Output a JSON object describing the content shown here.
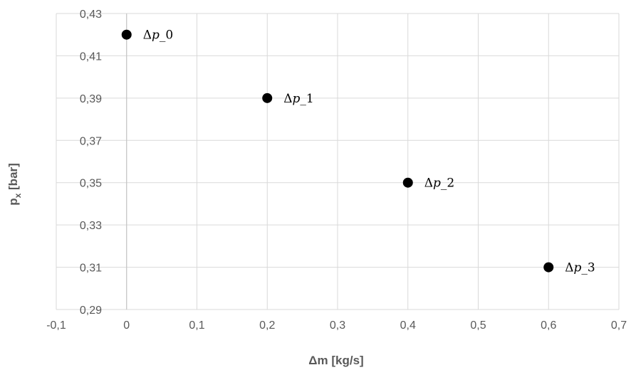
{
  "chart_data": {
    "type": "scatter",
    "title": "",
    "xlabel": "Δm [kg/s]",
    "ylabel_main": "p",
    "ylabel_sub": "x",
    "ylabel_suffix": " [bar]",
    "xlim": [
      -0.1,
      0.7
    ],
    "ylim": [
      0.29,
      0.43
    ],
    "x_ticks": [
      "-0,1",
      "0",
      "0,1",
      "0,2",
      "0,3",
      "0,4",
      "0,5",
      "0,6",
      "0,7"
    ],
    "y_ticks": [
      "0,29",
      "0,31",
      "0,33",
      "0,35",
      "0,37",
      "0,39",
      "0,41",
      "0,43"
    ],
    "grid": true,
    "legend": "none",
    "marker_color": "#000000",
    "points": [
      {
        "x": 0.0,
        "y": 0.42,
        "label": "Δ𝑝_0"
      },
      {
        "x": 0.2,
        "y": 0.39,
        "label": "Δ𝑝_1"
      },
      {
        "x": 0.4,
        "y": 0.35,
        "label": "Δ𝑝_2"
      },
      {
        "x": 0.6,
        "y": 0.31,
        "label": "Δ𝑝_3"
      }
    ]
  }
}
